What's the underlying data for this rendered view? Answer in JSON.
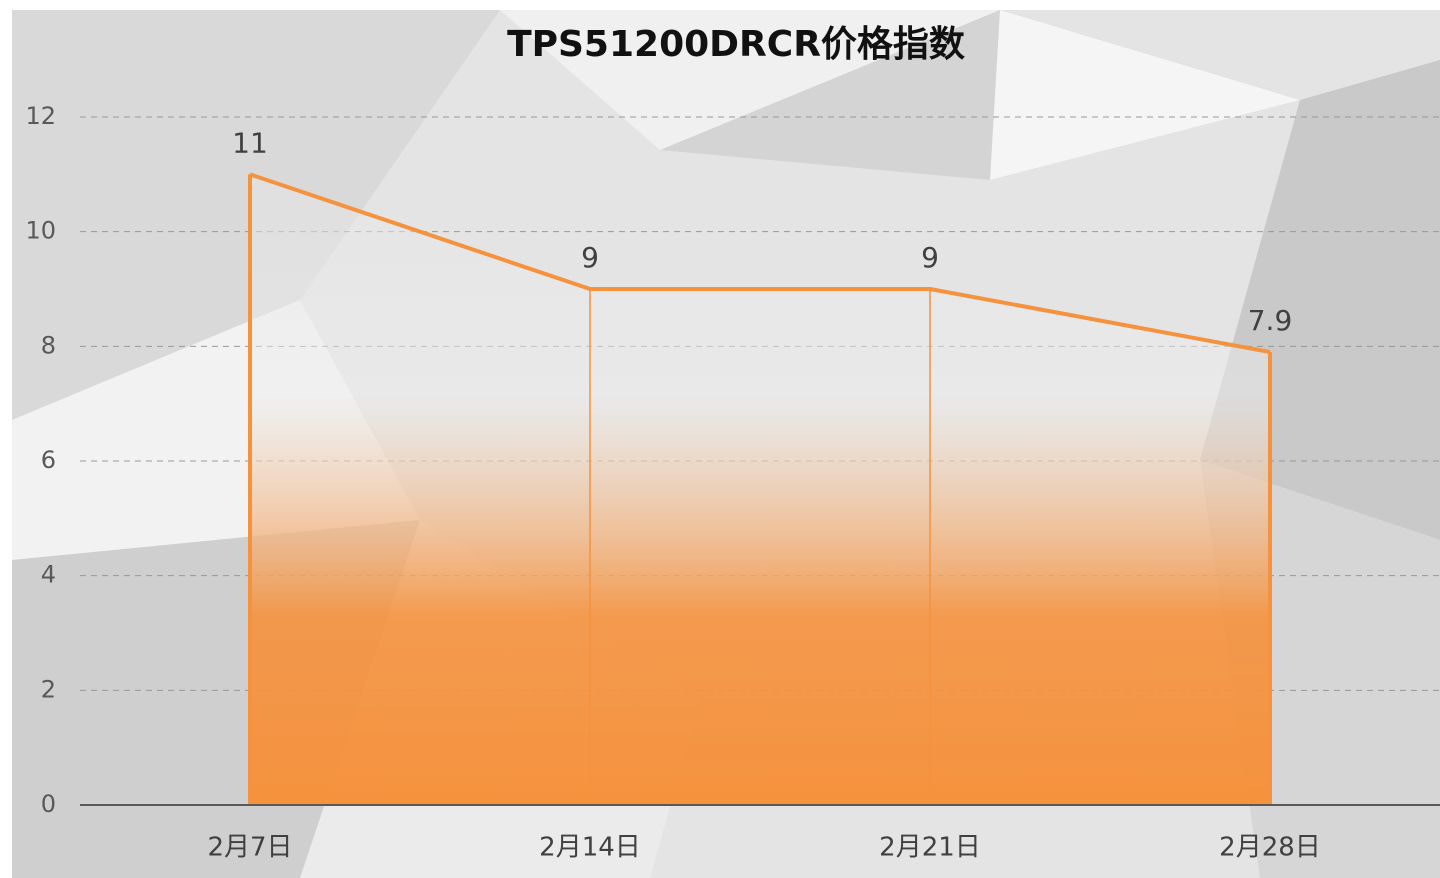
{
  "chart_data": {
    "type": "area",
    "title": "TPS51200DRCR价格指数",
    "categories": [
      "2月7日",
      "2月14日",
      "2月21日",
      "2月28日"
    ],
    "values": [
      11,
      9,
      9,
      7.9
    ],
    "color": "#f5923e",
    "ylim": [
      0,
      12
    ],
    "yticks": [
      0,
      2,
      4,
      6,
      8,
      10,
      12
    ],
    "grid": true
  }
}
